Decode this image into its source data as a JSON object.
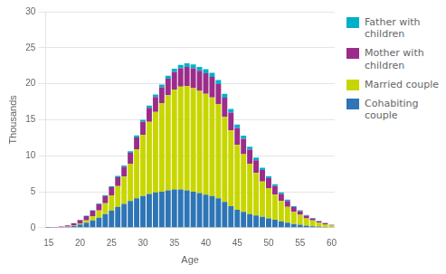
{
  "chart_data": {
    "type": "bar",
    "xlabel": "Age",
    "ylabel": "Thousands",
    "x": [
      15,
      16,
      17,
      18,
      19,
      20,
      21,
      22,
      23,
      24,
      25,
      26,
      27,
      28,
      29,
      30,
      31,
      32,
      33,
      34,
      35,
      36,
      37,
      38,
      39,
      40,
      41,
      42,
      43,
      44,
      45,
      46,
      47,
      48,
      49,
      50,
      51,
      52,
      53,
      54,
      55,
      56,
      57,
      58,
      59,
      60
    ],
    "series": [
      {
        "name": "Cohabiting\ncouple",
        "color": "#2e75b6",
        "values": [
          0.02,
          0.04,
          0.07,
          0.13,
          0.25,
          0.45,
          0.7,
          1.0,
          1.4,
          1.9,
          2.4,
          2.9,
          3.3,
          3.7,
          4.1,
          4.4,
          4.7,
          4.9,
          5.0,
          5.2,
          5.3,
          5.3,
          5.2,
          5.0,
          4.8,
          4.6,
          4.4,
          4.1,
          3.6,
          3.0,
          2.5,
          2.2,
          1.9,
          1.7,
          1.5,
          1.3,
          1.1,
          0.9,
          0.7,
          0.5,
          0.4,
          0.3,
          0.2,
          0.15,
          0.1,
          0.07
        ]
      },
      {
        "name": "Married couple",
        "color": "#c8d600",
        "values": [
          0.0,
          0.0,
          0.01,
          0.03,
          0.07,
          0.15,
          0.3,
          0.6,
          1.0,
          1.5,
          2.1,
          2.9,
          3.8,
          5.2,
          6.8,
          8.5,
          10.0,
          11.2,
          12.3,
          13.2,
          13.9,
          14.3,
          14.5,
          14.4,
          14.2,
          14.0,
          13.7,
          13.1,
          11.8,
          10.5,
          9.0,
          8.0,
          7.0,
          5.9,
          4.9,
          4.2,
          3.5,
          2.8,
          2.2,
          1.7,
          1.4,
          1.0,
          0.8,
          0.55,
          0.38,
          0.22
        ]
      },
      {
        "name": "Mother with\nchildren",
        "color": "#9b2c8a",
        "values": [
          0.01,
          0.03,
          0.07,
          0.15,
          0.28,
          0.45,
          0.6,
          0.75,
          0.88,
          1.0,
          1.12,
          1.22,
          1.35,
          1.5,
          1.65,
          1.8,
          1.95,
          2.05,
          2.2,
          2.3,
          2.45,
          2.55,
          2.65,
          2.75,
          2.8,
          2.85,
          2.85,
          2.75,
          2.65,
          2.5,
          2.35,
          2.15,
          1.95,
          1.78,
          1.6,
          1.4,
          1.2,
          1.0,
          0.82,
          0.65,
          0.5,
          0.38,
          0.28,
          0.2,
          0.14,
          0.1
        ]
      },
      {
        "name": "Father with\nchildren",
        "color": "#00b0c8",
        "values": [
          0.0,
          0.0,
          0.005,
          0.01,
          0.02,
          0.04,
          0.06,
          0.08,
          0.1,
          0.12,
          0.14,
          0.17,
          0.2,
          0.23,
          0.26,
          0.29,
          0.32,
          0.35,
          0.38,
          0.41,
          0.44,
          0.47,
          0.5,
          0.52,
          0.54,
          0.56,
          0.58,
          0.57,
          0.54,
          0.51,
          0.48,
          0.45,
          0.41,
          0.37,
          0.32,
          0.28,
          0.24,
          0.21,
          0.18,
          0.15,
          0.12,
          0.1,
          0.08,
          0.06,
          0.04,
          0.03
        ]
      }
    ],
    "xlim": [
      14.5,
      60.5
    ],
    "xticks": [
      15,
      20,
      25,
      30,
      35,
      40,
      45,
      50,
      55,
      60
    ],
    "ylim": [
      0,
      30
    ],
    "yticks": [
      0,
      5,
      10,
      15,
      20,
      25,
      30
    ],
    "stacked": true,
    "grid": true,
    "legend": "right"
  }
}
